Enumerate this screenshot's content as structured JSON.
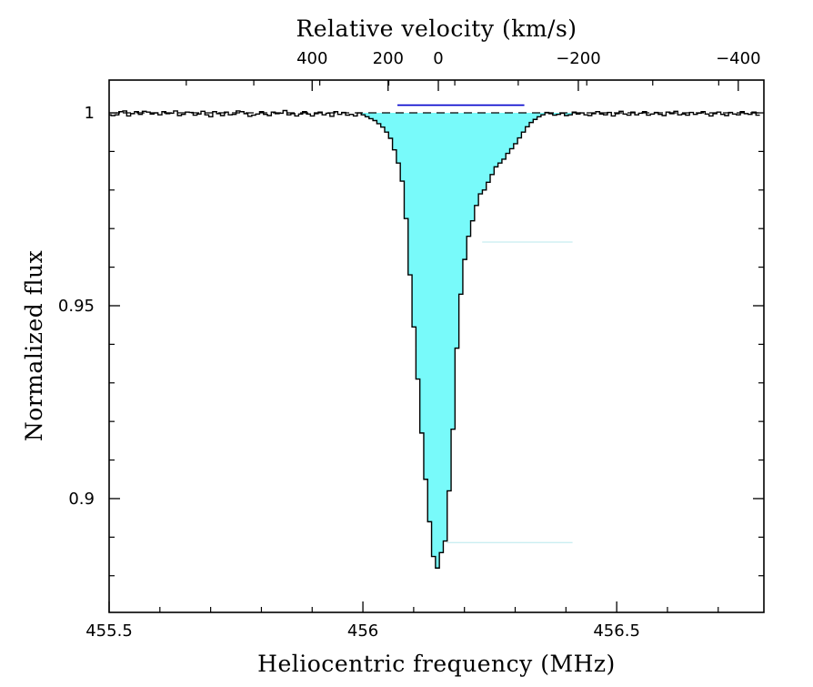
{
  "chart_data": {
    "type": "line",
    "title": "",
    "xlabel": "Heliocentric frequency (MHz)",
    "ylabel": "Normalized flux",
    "top_xlabel": "Relative velocity (km/s)",
    "xlim": [
      455.5,
      456.79
    ],
    "ylim": [
      0.8705,
      1.0085
    ],
    "x_ticks": [
      455.5,
      456,
      456.5
    ],
    "x_tick_labels": [
      "455.5",
      "456",
      "456.5"
    ],
    "x_minor_step": 0.1,
    "y_ticks": [
      0.9,
      0.95,
      1
    ],
    "y_tick_labels": [
      "0.9",
      "0.95",
      "1"
    ],
    "y_minor_step": 0.01,
    "top_ticks": [
      400,
      200,
      0,
      -200,
      -400
    ],
    "top_tick_labels": [
      "400",
      "200",
      "0",
      "−200",
      "−400"
    ],
    "top_tick_freqs": [
      455.9,
      456.0496,
      456.1486,
      456.4244,
      456.7395
    ],
    "top_minor_freqs": [
      455.652,
      455.785,
      455.915,
      456.051,
      456.181,
      456.306,
      456.441,
      456.571,
      456.701
    ],
    "continuum_level": 1.0,
    "absorption_range": [
      455.994,
      456.421
    ],
    "velocity_bar": {
      "x": [
        456.068,
        456.318
      ],
      "y": 1.002
    },
    "faint_levels": [
      {
        "x": [
          456.235,
          456.413
        ],
        "y": 0.9665
      },
      {
        "x": [
          456.165,
          456.413
        ],
        "y": 0.8886
      }
    ],
    "colors": {
      "fill": "#78fafa",
      "line": "#000000",
      "velocity_bar": "#0000cc",
      "faint_level": "#b8e8ee"
    },
    "series": [
      {
        "x": [
          455.5,
          455.5077,
          455.5154,
          455.5231,
          455.5308,
          455.5385,
          455.5462,
          455.5539,
          455.5616,
          455.5693,
          455.577,
          455.5847,
          455.5924,
          455.6001,
          455.6078,
          455.6155,
          455.6232,
          455.6309,
          455.6386,
          455.6463,
          455.654,
          455.6617,
          455.6694,
          455.6771,
          455.6848,
          455.6925,
          455.7002,
          455.7079,
          455.7156,
          455.7233,
          455.731,
          455.7387,
          455.7464,
          455.7541,
          455.7618,
          455.7695,
          455.7772,
          455.7849,
          455.7926,
          455.8003,
          455.808,
          455.8157,
          455.8234,
          455.8311,
          455.8388,
          455.8465,
          455.8542,
          455.8619,
          455.8696,
          455.8773,
          455.885,
          455.8927,
          455.9004,
          455.9081,
          455.9158,
          455.9235,
          455.9312,
          455.9389,
          455.9466,
          455.9543,
          455.962,
          455.9697,
          455.9774,
          455.9851,
          455.9928,
          456.0005,
          456.0082,
          456.0159,
          456.0236,
          456.0313,
          456.039,
          456.0467,
          456.0544,
          456.0621,
          456.0698,
          456.0775,
          456.0852,
          456.0929,
          456.1006,
          456.1083,
          456.116,
          456.1237,
          456.1314,
          456.1391,
          456.1468,
          456.1545,
          456.1622,
          456.1699,
          456.1776,
          456.1853,
          456.193,
          456.2007,
          456.2084,
          456.2161,
          456.2238,
          456.2315,
          456.2392,
          456.2469,
          456.2546,
          456.2623,
          456.27,
          456.2777,
          456.2854,
          456.2931,
          456.3008,
          456.3085,
          456.3162,
          456.3239,
          456.3316,
          456.3393,
          456.347,
          456.3547,
          456.3624,
          456.3701,
          456.3778,
          456.3855,
          456.3932,
          456.4009,
          456.4086,
          456.4163,
          456.424,
          456.4317,
          456.4394,
          456.4471,
          456.4548,
          456.4625,
          456.4702,
          456.4779,
          456.4856,
          456.4933,
          456.501,
          456.5087,
          456.5164,
          456.5241,
          456.5318,
          456.5395,
          456.5472,
          456.5549,
          456.5626,
          456.5703,
          456.578,
          456.5857,
          456.5934,
          456.6011,
          456.6088,
          456.6165,
          456.6242,
          456.6319,
          456.6396,
          456.6473,
          456.655,
          456.6627,
          456.6704,
          456.6781,
          456.6858,
          456.6935,
          456.7012,
          456.7089,
          456.7166,
          456.7243,
          456.732,
          456.7397,
          456.7474,
          456.7551,
          456.7628,
          456.7705,
          456.7782
        ],
        "y": [
          0.9995,
          0.9993,
          0.9995,
          1.0003,
          1.0005,
          0.9992,
          0.9998,
          1.0003,
          0.9996,
          1.0004,
          1.0002,
          0.9997,
          1.0,
          0.9995,
          1.0003,
          0.9998,
          0.9999,
          1.0005,
          0.9993,
          0.9996,
          1.0002,
          1.0001,
          0.9994,
          0.9997,
          1.0004,
          0.9995,
          0.999,
          1.0003,
          0.9998,
          0.9993,
          1.0002,
          0.9995,
          0.9996,
          1.0005,
          1.0003,
          0.9998,
          0.9991,
          0.9994,
          0.9997,
          1.0003,
          0.9996,
          0.9993,
          1.0002,
          0.9998,
          0.9999,
          1.0006,
          0.9995,
          0.9998,
          0.9992,
          0.9997,
          1.0003,
          0.9997,
          0.9992,
          0.9998,
          1.0002,
          0.9995,
          0.9999,
          0.9991,
          1.0003,
          0.9996,
          1.0001,
          0.9994,
          0.9996,
          0.9992,
          1.0,
          0.9995,
          0.999,
          0.9985,
          0.998,
          0.9972,
          0.9963,
          0.995,
          0.9934,
          0.9904,
          0.987,
          0.9823,
          0.9726,
          0.958,
          0.9445,
          0.931,
          0.917,
          0.905,
          0.894,
          0.885,
          0.882,
          0.886,
          0.889,
          0.902,
          0.918,
          0.939,
          0.953,
          0.962,
          0.968,
          0.972,
          0.976,
          0.979,
          0.98,
          0.982,
          0.984,
          0.986,
          0.987,
          0.988,
          0.9895,
          0.9907,
          0.992,
          0.9935,
          0.995,
          0.9964,
          0.9975,
          0.9983,
          0.999,
          0.9995,
          1.0001,
          0.9998,
          0.9994,
          0.9996,
          0.9999,
          0.9993,
          0.9995,
          1.0002,
          0.9997,
          1.0,
          0.9995,
          0.9993,
          0.9998,
          1.0003,
          0.9997,
          0.9995,
          1.0001,
          0.9992,
          0.9998,
          1.0004,
          0.9997,
          0.9994,
          1.0002,
          0.9995,
          0.9999,
          1.0003,
          0.9994,
          0.9997,
          1.0001,
          0.9996,
          0.9993,
          1.0002,
          0.9998,
          1.0004,
          0.9995,
          0.9997,
          0.9994,
          1.0001,
          0.9996,
          0.9999,
          1.0003,
          0.9997,
          0.9992,
          0.9998,
          1.0002,
          0.9996,
          0.9993,
          1.0001,
          0.9997,
          0.9995,
          1.0003,
          0.9998,
          0.9996,
          1.0002,
          0.9994
        ]
      }
    ]
  }
}
